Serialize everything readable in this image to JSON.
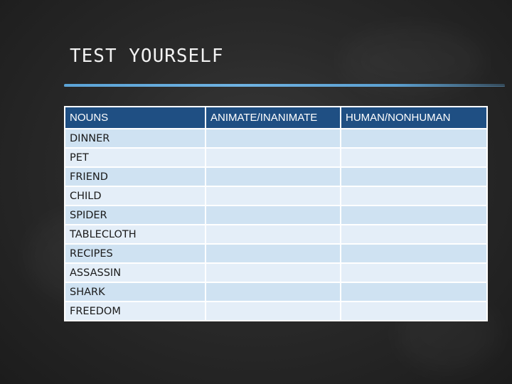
{
  "slide": {
    "title": "TEST YOURSELF"
  },
  "table": {
    "headers": [
      "NOUNS",
      "ANIMATE/INANIMATE",
      "HUMAN/NONHUMAN"
    ],
    "rows": [
      {
        "noun": "DINNER",
        "animate": "",
        "human": ""
      },
      {
        "noun": "PET",
        "animate": "",
        "human": ""
      },
      {
        "noun": "FRIEND",
        "animate": "",
        "human": ""
      },
      {
        "noun": "CHILD",
        "animate": "",
        "human": ""
      },
      {
        "noun": "SPIDER",
        "animate": "",
        "human": ""
      },
      {
        "noun": "TABLECLOTH",
        "animate": "",
        "human": ""
      },
      {
        "noun": "RECIPES",
        "animate": "",
        "human": ""
      },
      {
        "noun": "ASSASSIN",
        "animate": "",
        "human": ""
      },
      {
        "noun": "SHARK",
        "animate": "",
        "human": ""
      },
      {
        "noun": "FREEDOM",
        "animate": "",
        "human": ""
      }
    ]
  },
  "colors": {
    "header_bg": "#1f4f83",
    "row_bg": "#cfe2f2",
    "row_alt_bg": "#e4eef8",
    "accent_line": "#5aa3d6",
    "background": "#2a2a2a"
  }
}
